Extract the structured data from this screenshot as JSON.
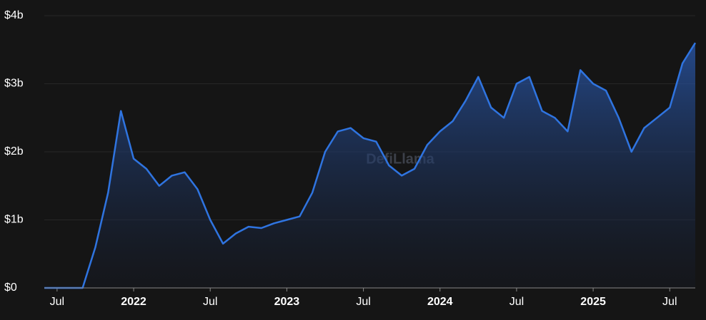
{
  "chart_data": {
    "type": "area",
    "watermark": "DefiLlama",
    "color": "#2f74e0",
    "x": [
      "2021-06",
      "2021-07",
      "2021-08",
      "2021-09",
      "2021-10",
      "2021-11",
      "2021-12",
      "2022-01",
      "2022-02",
      "2022-03",
      "2022-04",
      "2022-05",
      "2022-06",
      "2022-07",
      "2022-08",
      "2022-09",
      "2022-10",
      "2022-11",
      "2022-12",
      "2023-01",
      "2023-02",
      "2023-03",
      "2023-04",
      "2023-05",
      "2023-06",
      "2023-07",
      "2023-08",
      "2023-09",
      "2023-10",
      "2023-11",
      "2023-12",
      "2024-01",
      "2024-02",
      "2024-03",
      "2024-04",
      "2024-05",
      "2024-06",
      "2024-07",
      "2024-08",
      "2024-09",
      "2024-10",
      "2024-11",
      "2024-12",
      "2025-01",
      "2025-02",
      "2025-03",
      "2025-04",
      "2025-05",
      "2025-06",
      "2025-07",
      "2025-08",
      "2025-09"
    ],
    "values": [
      0,
      0,
      0,
      0,
      600000000,
      1400000000,
      2600000000,
      1900000000,
      1750000000,
      1500000000,
      1650000000,
      1700000000,
      1450000000,
      1000000000,
      650000000,
      800000000,
      900000000,
      880000000,
      950000000,
      1000000000,
      1050000000,
      1400000000,
      2000000000,
      2300000000,
      2350000000,
      2200000000,
      2150000000,
      1800000000,
      1650000000,
      1750000000,
      2100000000,
      2300000000,
      2450000000,
      2750000000,
      3100000000,
      2650000000,
      2500000000,
      3000000000,
      3100000000,
      2600000000,
      2500000000,
      2300000000,
      3200000000,
      3000000000,
      2900000000,
      2500000000,
      2000000000,
      2350000000,
      2500000000,
      2650000000,
      3300000000,
      3600000000
    ],
    "xlim": [
      "2021-06",
      "2025-09"
    ],
    "xticks": [
      {
        "value": "2021-07",
        "label": "Jul"
      },
      {
        "value": "2022-01",
        "label": "2022"
      },
      {
        "value": "2022-07",
        "label": "Jul"
      },
      {
        "value": "2023-01",
        "label": "2023"
      },
      {
        "value": "2023-07",
        "label": "Jul"
      },
      {
        "value": "2024-01",
        "label": "2024"
      },
      {
        "value": "2024-07",
        "label": "Jul"
      },
      {
        "value": "2025-01",
        "label": "2025"
      },
      {
        "value": "2025-07",
        "label": "Jul"
      }
    ],
    "ylim": [
      0,
      4000000000
    ],
    "yticks": [
      {
        "value": 0,
        "label": "$0"
      },
      {
        "value": 1000000000,
        "label": "$1b"
      },
      {
        "value": 2000000000,
        "label": "$2b"
      },
      {
        "value": 3000000000,
        "label": "$3b"
      },
      {
        "value": 4000000000,
        "label": "$4b"
      }
    ],
    "grid": true
  }
}
